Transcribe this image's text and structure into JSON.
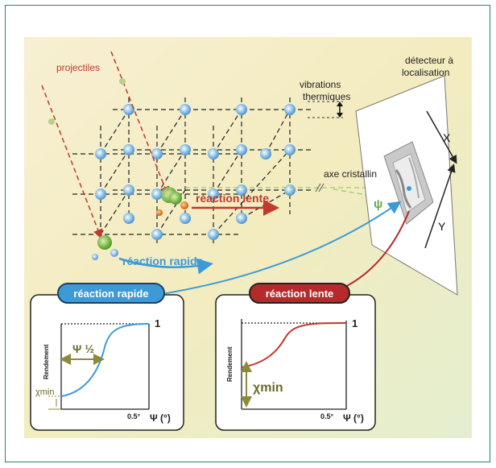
{
  "labels": {
    "projectiles": "projectiles",
    "vibrations_line1": "vibrations",
    "vibrations_line2": "thermiques",
    "detecteur_line1": "détecteur à",
    "detecteur_line2": "localisation",
    "axe": "axe cristallin",
    "psi": "ψ",
    "X": "X",
    "Y": "Y",
    "reaction_lente": "réaction lente",
    "reaction_rapide": "réaction rapide"
  },
  "panel_rapide": {
    "title": "réaction rapide",
    "ylabel": "Rendement",
    "one": "1",
    "psi_half": "Ψ ½",
    "chi_min": "χmin",
    "x_tick": "0.5°",
    "x_axis": "Ψ (°)"
  },
  "panel_lente": {
    "title": "réaction lente",
    "ylabel": "Rendement",
    "one": "1",
    "chi_min": "χmin",
    "x_tick": "0.5°",
    "x_axis": "Ψ (°)"
  },
  "colors": {
    "red": "#c0392b",
    "blue": "#3e9ad6",
    "olive": "#8a8a3a",
    "frame": "#2f7d6d"
  }
}
